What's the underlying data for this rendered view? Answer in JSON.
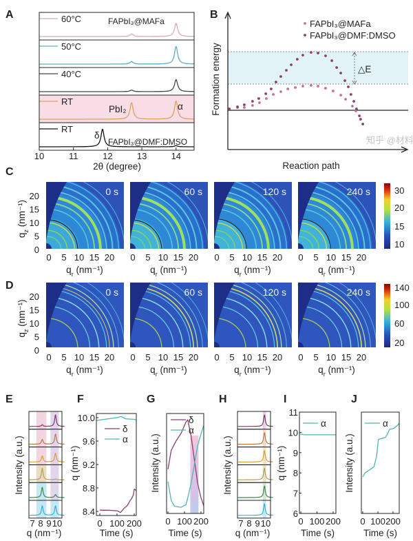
{
  "panel_labels": [
    "A",
    "B",
    "C",
    "D",
    "E",
    "F",
    "G",
    "H",
    "I",
    "J"
  ],
  "watermark": "知乎 @材料",
  "chart_data": [
    {
      "panel": "A",
      "type": "line",
      "xlabel": "2θ (degree)",
      "xlim": [
        10,
        14.5
      ],
      "xticks": [
        "10",
        "11",
        "12",
        "13",
        "14"
      ],
      "annotations": {
        "top": "FAPbI₃@MAFa",
        "pbi2": "PbI₂",
        "alpha": "α",
        "delta": "δ",
        "bottom": "FAPbI₃@DMF:DMSO"
      },
      "highlight_color": "#f9dde6",
      "traces": [
        {
          "label": "60°C",
          "color": "#d9a7bf",
          "peaks": [
            [
              12.7,
              0.12
            ],
            [
              14.0,
              0.6
            ]
          ]
        },
        {
          "label": "50°C",
          "color": "#5aaec9",
          "peaks": [
            [
              12.7,
              0.12
            ],
            [
              14.0,
              0.8
            ]
          ]
        },
        {
          "label": "40°C",
          "color": "#444444",
          "peaks": [
            [
              12.7,
              0.07
            ],
            [
              14.0,
              0.55
            ]
          ]
        },
        {
          "label": "RT",
          "color": "#e0a060",
          "peaks": [
            [
              12.7,
              0.75
            ],
            [
              14.0,
              0.82
            ]
          ],
          "highlight": true
        },
        {
          "label": "RT",
          "color": "#111111",
          "peaks": [
            [
              11.85,
              0.8
            ],
            [
              14.0,
              0.05
            ]
          ]
        }
      ]
    },
    {
      "panel": "B",
      "type": "scatter",
      "xlabel": "Reaction path",
      "ylabel": "Formation energy",
      "xlim": [
        0,
        100
      ],
      "ylim": [
        0,
        100
      ],
      "delta_label": "△E",
      "reference_levels": {
        "baseline": 28.5,
        "lower_dashed": 47.5,
        "upper_dashed": 71
      },
      "band_color": "#e2f3f8",
      "series": [
        {
          "name": "FAPbI₃@MAFa",
          "color": "#c7708f",
          "x": [
            0.8,
            5.4,
            9.2,
            13.8,
            17.7,
            21.5,
            25.4,
            29.6,
            33.5,
            37.7,
            41.9,
            46.5,
            50.4,
            54.6,
            58.8,
            63.1,
            65.8,
            69.6,
            71.5
          ],
          "y": [
            29.5,
            30.5,
            30.5,
            32,
            34,
            37,
            40,
            42,
            44,
            45,
            46,
            46.5,
            46,
            44.5,
            42.5,
            39.5,
            36.5,
            31.5,
            28
          ]
        },
        {
          "name": "FAPbI₃@DMF:DMSO",
          "color": "#8a3f70",
          "x": [
            0.8,
            5.4,
            9.2,
            13.8,
            17.3,
            21.2,
            24.2,
            26.9,
            29.6,
            32.7,
            35.4,
            38.8,
            41.9,
            46.5,
            50.4,
            54.6,
            58.1,
            60.8,
            63.1,
            65.4,
            67.3,
            68.8,
            70.4,
            71.9,
            73.5,
            74.2,
            75.4
          ],
          "y": [
            29.5,
            31,
            32.5,
            35,
            37,
            40.5,
            44,
            49,
            53,
            57.5,
            61.5,
            65.5,
            68.5,
            70.5,
            70,
            68,
            64.5,
            59.5,
            55.5,
            50,
            45.5,
            40,
            35,
            29.5,
            24.5,
            22,
            18.5
          ]
        }
      ]
    },
    {
      "panel": "C",
      "type": "heatmap",
      "frames": [
        "0 s",
        "60 s",
        "120 s",
        "240 s"
      ],
      "xlabel": {
        "base": "q",
        "sub": "r",
        "unit": " (nm⁻¹)"
      },
      "ylabel": {
        "base": "q",
        "sub": "z",
        "unit": " (nm⁻¹)"
      },
      "xticks": [
        "0",
        "5",
        "10",
        "15",
        "20"
      ],
      "yticks": [
        "20",
        "15",
        "10",
        "5",
        "0"
      ],
      "colorbar_ticks": [
        "30",
        "20",
        "15",
        "10"
      ],
      "colorbar_range": [
        10,
        33
      ],
      "colormap": "jet"
    },
    {
      "panel": "D",
      "type": "heatmap",
      "frames": [
        "0 s",
        "60 s",
        "120 s",
        "240 s"
      ],
      "xlabel": {
        "base": "q",
        "sub": "r",
        "unit": " (nm⁻¹)"
      },
      "ylabel": {
        "base": "q",
        "sub": "z",
        "unit": " (nm⁻¹)"
      },
      "xticks": [
        "0",
        "5",
        "10",
        "15",
        "20"
      ],
      "yticks": [
        "20",
        "15",
        "10",
        "5",
        "0"
      ],
      "colorbar_ticks": [
        "140",
        "100",
        "60",
        "20"
      ],
      "colorbar_range": [
        10,
        150
      ],
      "colormap": "jet"
    },
    {
      "panel": "E",
      "type": "line",
      "xlabel": "q (nm⁻¹)",
      "ylabel": "Intensity (a.u.)",
      "xticks": [
        "7",
        "8",
        "9",
        "10"
      ],
      "xlim": [
        6.6,
        10.9
      ],
      "bands": [
        [
          7.5,
          8.7
        ],
        [
          9.2,
          10.2
        ]
      ],
      "traces": [
        {
          "color": "#7a3a6a",
          "peaks": [
            [
              8.2,
              0.12
            ],
            [
              9.8,
              0.85
            ]
          ]
        },
        {
          "color": "#b87a40",
          "peaks": [
            [
              8.2,
              0.35
            ],
            [
              9.8,
              0.75
            ]
          ]
        },
        {
          "color": "#d9a030",
          "peaks": [
            [
              8.2,
              0.45
            ],
            [
              9.8,
              0.65
            ]
          ]
        },
        {
          "color": "#b0a055",
          "peaks": [
            [
              8.2,
              0.85
            ],
            [
              9.8,
              0.06
            ]
          ]
        },
        {
          "color": "#3a8a4a",
          "peaks": [
            [
              8.2,
              0.75
            ],
            [
              9.8,
              0.22
            ]
          ]
        },
        {
          "color": "#2fb2d6",
          "peaks": [
            [
              8.2,
              0.7
            ],
            [
              9.8,
              0.7
            ]
          ]
        }
      ]
    },
    {
      "panel": "F",
      "type": "line",
      "xlabel": "Time (s)",
      "ylabel": "q (nm⁻¹)",
      "xticks": [
        "0",
        "100",
        "200"
      ],
      "yticks": [
        "10.0",
        "9.6",
        "9.2",
        "8.8",
        "8.4"
      ],
      "ylim": [
        8.33,
        10.08
      ],
      "series": [
        {
          "name": "δ",
          "color": "#8a3f70",
          "t": [
            0,
            50,
            100,
            120,
            140,
            160,
            175,
            185,
            195,
            200,
            210,
            222
          ],
          "q": [
            8.42,
            8.42,
            8.41,
            8.38,
            8.45,
            8.5,
            8.58,
            8.62,
            8.68,
            8.78,
            8.76,
            8.72
          ]
        },
        {
          "name": "α",
          "color": "#4fb5b5",
          "t": [
            -20,
            0,
            50,
            100,
            125,
            150,
            200,
            212
          ],
          "q": [
            9.95,
            9.96,
            9.98,
            10.0,
            10.02,
            9.98,
            9.97,
            9.96
          ]
        }
      ]
    },
    {
      "panel": "G",
      "type": "line",
      "xlabel": "Time (s)",
      "ylabel": "Intensity (a.u.)",
      "xticks": [
        "0",
        "100",
        "200"
      ],
      "band": [
        135,
        185
      ],
      "series": [
        {
          "name": "δ",
          "color": "#8a3f70",
          "t": [
            0,
            20,
            50,
            80,
            110,
            120,
            140,
            160,
            180,
            200,
            220,
            235
          ],
          "v": [
            0.45,
            0.65,
            0.75,
            0.83,
            0.95,
            0.97,
            0.8,
            0.55,
            0.3,
            0.15,
            0.05,
            0.03
          ]
        },
        {
          "name": "α",
          "color": "#4fb5b5",
          "t": [
            0,
            20,
            40,
            80,
            110,
            140,
            160,
            180,
            200,
            220,
            235
          ],
          "v": [
            0.32,
            0.12,
            0.06,
            0.05,
            0.08,
            0.3,
            0.5,
            0.7,
            0.82,
            0.93,
            0.97
          ]
        }
      ]
    },
    {
      "panel": "H",
      "type": "line",
      "xlabel": "q (nm⁻¹)",
      "ylabel": "Intensity (a.u.)",
      "xticks": [
        "7",
        "8",
        "9",
        "10"
      ],
      "xlim": [
        6.6,
        10.9
      ],
      "band": [
        9.65,
        10.05
      ],
      "traces": [
        {
          "color": "#7a3a6a",
          "band": "#ead3ea",
          "peaks": [
            [
              9.85,
              0.85
            ]
          ]
        },
        {
          "color": "#c07a40",
          "band": "#f3dccb",
          "peaks": [
            [
              9.85,
              0.85
            ]
          ]
        },
        {
          "color": "#d9a030",
          "band": "#f5e2c6",
          "peaks": [
            [
              9.85,
              0.85
            ]
          ]
        },
        {
          "color": "#b0a055",
          "band": "#e7e2c8",
          "peaks": [
            [
              9.85,
              0.85
            ]
          ]
        },
        {
          "color": "#3a8a4a",
          "band": "#d3e6d6",
          "peaks": [
            [
              9.85,
              0.85
            ]
          ]
        },
        {
          "color": "#2fb2d6",
          "band": "#c6e9f5",
          "peaks": [
            [
              9.85,
              0.85
            ]
          ]
        }
      ]
    },
    {
      "panel": "I",
      "type": "line",
      "xlabel": "Time (s)",
      "ylabel": "q (nm⁻¹)",
      "xticks": [
        "0",
        "100",
        "200"
      ],
      "yticks": [
        "11",
        "10",
        "9",
        "8",
        "7",
        "6"
      ],
      "ylim": [
        6,
        11
      ],
      "series": [
        {
          "name": "α",
          "color": "#4fb5b5",
          "t": [
            -5,
            0,
            20,
            100,
            200,
            250
          ],
          "q": [
            9.92,
            9.92,
            9.88,
            9.88,
            9.88,
            9.88
          ]
        }
      ]
    },
    {
      "panel": "J",
      "type": "line",
      "xlabel": "Time (s)",
      "ylabel": "Intensity (a.u.)",
      "xticks": [
        "0",
        "100",
        "200"
      ],
      "series": [
        {
          "name": "α",
          "color": "#4fb5b5",
          "t": [
            0,
            15,
            34,
            55,
            74,
            91,
            103,
            125,
            149,
            165,
            177,
            206,
            230,
            246,
            270,
            286
          ],
          "v": [
            0.36,
            0.4,
            0.42,
            0.44,
            0.46,
            0.56,
            0.73,
            0.74,
            0.75,
            0.79,
            0.83,
            0.84,
            0.87,
            0.9,
            0.92,
            0.93
          ]
        }
      ]
    }
  ]
}
